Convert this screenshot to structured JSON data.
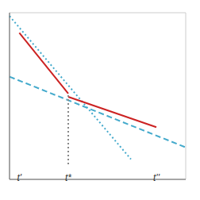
{
  "chart_data": {
    "type": "line",
    "xlim": [
      0,
      9
    ],
    "ylim": [
      -0.9,
      9
    ],
    "xticks": [
      0,
      1,
      2,
      3,
      4,
      5,
      6,
      7,
      8,
      9
    ],
    "yticks": [
      0,
      1,
      2,
      3,
      4,
      5,
      6,
      7,
      8,
      9
    ],
    "grid": true,
    "tick_labels": false,
    "series": [
      {
        "x": [
          0.0,
          9.0
        ],
        "values": [
          5.2,
          1.0
        ],
        "color": "#44aacc",
        "line_style": "dashed"
      },
      {
        "x": [
          0.0,
          6.2
        ],
        "values": [
          8.8,
          0.3
        ],
        "color": "#44aacc",
        "line_style": "dotted"
      },
      {
        "x": [
          0.5,
          3.0
        ],
        "values": [
          7.8,
          4.2
        ],
        "color": "#cc2222",
        "line_style": "solid"
      },
      {
        "x": [
          3.0,
          7.5
        ],
        "values": [
          4.0,
          2.2
        ],
        "color": "#cc2222",
        "line_style": "solid"
      },
      {
        "x": [
          3.0,
          3.0
        ],
        "values": [
          0,
          4.1
        ],
        "color": "#888888",
        "line_style": "dotted"
      }
    ],
    "annotations": [
      {
        "text": "t'",
        "x": 0.5,
        "y": -0.55
      },
      {
        "text": "t*",
        "x": 3.0,
        "y": -0.55
      },
      {
        "text": "t''",
        "x": 7.5,
        "y": -0.55
      }
    ]
  }
}
